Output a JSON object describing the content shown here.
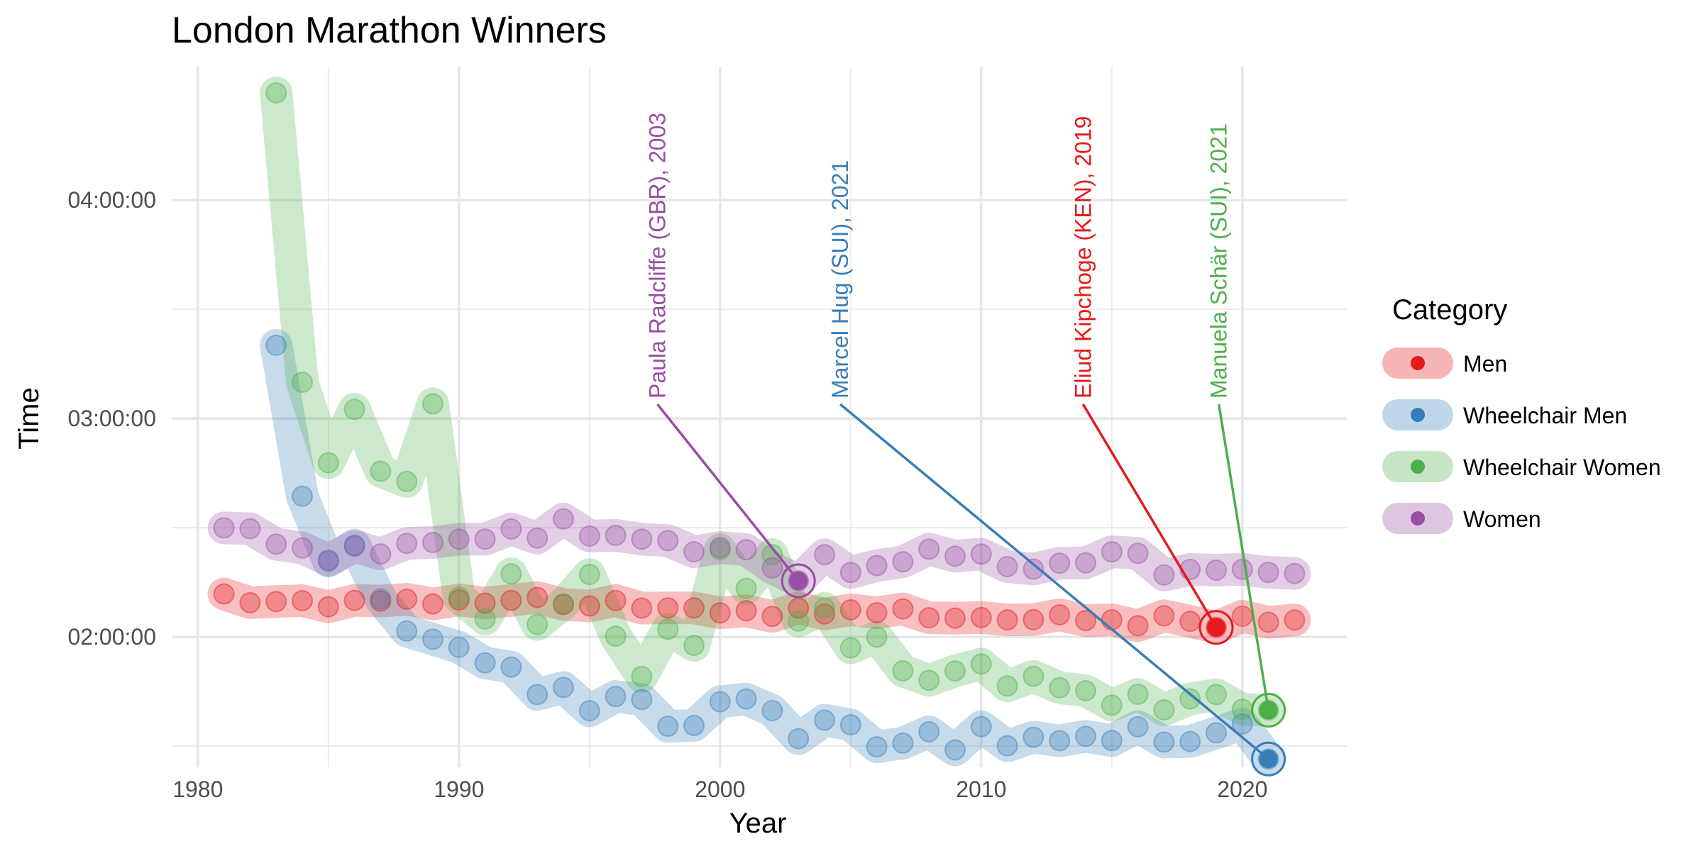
{
  "chart_data": {
    "type": "line",
    "title": "London Marathon Winners",
    "xlabel": "Year",
    "ylabel": "Time",
    "xlim": [
      1979,
      2024
    ],
    "ylim_seconds": [
      5050,
      16600
    ],
    "x_ticks": [
      1980,
      1990,
      2000,
      2010,
      2020
    ],
    "y_ticks": [
      {
        "seconds": 7200,
        "label": "02:00:00"
      },
      {
        "seconds": 10800,
        "label": "03:00:00"
      },
      {
        "seconds": 14400,
        "label": "04:00:00"
      }
    ],
    "grid": true,
    "legend": {
      "title": "Category",
      "position": "right"
    },
    "series": [
      {
        "name": "Men",
        "color": "#E41A1C",
        "points": [
          [
            1981,
            "02:11:48"
          ],
          [
            1982,
            "02:09:24"
          ],
          [
            1983,
            "02:09:43"
          ],
          [
            1984,
            "02:09:57"
          ],
          [
            1985,
            "02:08:16"
          ],
          [
            1986,
            "02:10:02"
          ],
          [
            1987,
            "02:09:50"
          ],
          [
            1988,
            "02:10:20"
          ],
          [
            1989,
            "02:09:03"
          ],
          [
            1990,
            "02:10:10"
          ],
          [
            1991,
            "02:09:17"
          ],
          [
            1992,
            "02:10:02"
          ],
          [
            1993,
            "02:10:50"
          ],
          [
            1994,
            "02:08:53"
          ],
          [
            1995,
            "02:08:30"
          ],
          [
            1996,
            "02:10:00"
          ],
          [
            1997,
            "02:07:55"
          ],
          [
            1998,
            "02:07:57"
          ],
          [
            1999,
            "02:07:57"
          ],
          [
            2000,
            "02:06:36"
          ],
          [
            2001,
            "02:07:11"
          ],
          [
            2002,
            "02:05:38"
          ],
          [
            2003,
            "02:07:56"
          ],
          [
            2004,
            "02:06:18"
          ],
          [
            2005,
            "02:07:26"
          ],
          [
            2006,
            "02:06:39"
          ],
          [
            2007,
            "02:07:41"
          ],
          [
            2008,
            "02:05:15"
          ],
          [
            2009,
            "02:05:10"
          ],
          [
            2010,
            "02:05:19"
          ],
          [
            2011,
            "02:04:40"
          ],
          [
            2012,
            "02:04:44"
          ],
          [
            2013,
            "02:06:04"
          ],
          [
            2014,
            "02:04:29"
          ],
          [
            2015,
            "02:04:42"
          ],
          [
            2016,
            "02:03:05"
          ],
          [
            2017,
            "02:05:48"
          ],
          [
            2018,
            "02:04:17"
          ],
          [
            2019,
            "02:02:37"
          ],
          [
            2020,
            "02:05:41"
          ],
          [
            2021,
            "02:04:01"
          ],
          [
            2022,
            "02:04:39"
          ]
        ]
      },
      {
        "name": "Wheelchair Men",
        "color": "#377EB8",
        "points": [
          [
            1983,
            "03:20:07"
          ],
          [
            1984,
            "02:38:40"
          ],
          [
            1985,
            "02:20:48"
          ],
          [
            1986,
            "02:25:13"
          ],
          [
            1987,
            "02:10:27"
          ],
          [
            1988,
            "02:01:37"
          ],
          [
            1989,
            "01:59:22"
          ],
          [
            1990,
            "01:57:08"
          ],
          [
            1991,
            "01:52:52"
          ],
          [
            1992,
            "01:51:42"
          ],
          [
            1993,
            "01:44:10"
          ],
          [
            1994,
            "01:46:07"
          ],
          [
            1995,
            "01:39:42"
          ],
          [
            1996,
            "01:43:37"
          ],
          [
            1997,
            "01:42:48"
          ],
          [
            1998,
            "01:35:27"
          ],
          [
            1999,
            "01:35:40"
          ],
          [
            2000,
            "01:42:10"
          ],
          [
            2001,
            "01:42:57"
          ],
          [
            2002,
            "01:39:44"
          ],
          [
            2003,
            "01:32:02"
          ],
          [
            2004,
            "01:37:07"
          ],
          [
            2005,
            "01:35:51"
          ],
          [
            2006,
            "01:29:48"
          ],
          [
            2007,
            "01:30:49"
          ],
          [
            2008,
            "01:33:56"
          ],
          [
            2009,
            "01:28:57"
          ],
          [
            2010,
            "01:35:21"
          ],
          [
            2011,
            "01:30:05"
          ],
          [
            2012,
            "01:32:26"
          ],
          [
            2013,
            "01:31:28"
          ],
          [
            2014,
            "01:32:41"
          ],
          [
            2015,
            "01:31:31"
          ],
          [
            2016,
            "01:35:19"
          ],
          [
            2017,
            "01:31:06"
          ],
          [
            2018,
            "01:31:15"
          ],
          [
            2019,
            "01:33:38"
          ],
          [
            2020,
            "01:36:04"
          ],
          [
            2021,
            "01:26:27"
          ]
        ]
      },
      {
        "name": "Wheelchair Women",
        "color": "#4DAF4A",
        "points": [
          [
            1983,
            "04:29:28"
          ],
          [
            1984,
            "03:09:58"
          ],
          [
            1985,
            "02:47:51"
          ],
          [
            1986,
            "03:02:32"
          ],
          [
            1987,
            "02:45:31"
          ],
          [
            1988,
            "02:42:42"
          ],
          [
            1989,
            "03:04:02"
          ],
          [
            1990,
            "02:10:54"
          ],
          [
            1991,
            "02:04:56"
          ],
          [
            1992,
            "02:17:19"
          ],
          [
            1993,
            "02:03:26"
          ],
          [
            1994,
            "02:09:06"
          ],
          [
            1995,
            "02:17:09"
          ],
          [
            1996,
            "02:00:11"
          ],
          [
            1997,
            "01:49:08"
          ],
          [
            1998,
            "02:02:06"
          ],
          [
            1999,
            "01:57:40"
          ],
          [
            2000,
            "02:23:56"
          ],
          [
            2001,
            "02:13:21"
          ],
          [
            2002,
            "02:22:36"
          ],
          [
            2003,
            "02:04:21"
          ],
          [
            2004,
            "02:07:51"
          ],
          [
            2005,
            "01:57:00"
          ],
          [
            2006,
            "01:59:57"
          ],
          [
            2007,
            "01:50:40"
          ],
          [
            2008,
            "01:48:04"
          ],
          [
            2009,
            "01:50:39"
          ],
          [
            2010,
            "01:52:33"
          ],
          [
            2011,
            "01:46:31"
          ],
          [
            2012,
            "01:49:10"
          ],
          [
            2013,
            "01:46:02"
          ],
          [
            2014,
            "01:45:12"
          ],
          [
            2015,
            "01:41:14"
          ],
          [
            2016,
            "01:44:14"
          ],
          [
            2017,
            "01:39:57"
          ],
          [
            2018,
            "01:42:58"
          ],
          [
            2019,
            "01:44:09"
          ],
          [
            2020,
            "01:40:07"
          ],
          [
            2021,
            "01:39:52"
          ]
        ]
      },
      {
        "name": "Women",
        "color": "#984EA3",
        "points": [
          [
            1981,
            "02:29:57"
          ],
          [
            1982,
            "02:29:43"
          ],
          [
            1983,
            "02:25:29"
          ],
          [
            1984,
            "02:24:26"
          ],
          [
            1985,
            "02:21:06"
          ],
          [
            1986,
            "02:24:54"
          ],
          [
            1987,
            "02:22:48"
          ],
          [
            1988,
            "02:25:41"
          ],
          [
            1989,
            "02:25:56"
          ],
          [
            1990,
            "02:26:51"
          ],
          [
            1991,
            "02:26:52"
          ],
          [
            1992,
            "02:29:39"
          ],
          [
            1993,
            "02:27:09"
          ],
          [
            1994,
            "02:32:24"
          ],
          [
            1995,
            "02:27:43"
          ],
          [
            1996,
            "02:27:54"
          ],
          [
            1997,
            "02:26:51"
          ],
          [
            1998,
            "02:26:26"
          ],
          [
            1999,
            "02:23:22"
          ],
          [
            2000,
            "02:24:33"
          ],
          [
            2001,
            "02:23:57"
          ],
          [
            2002,
            "02:18:56"
          ],
          [
            2003,
            "02:15:25"
          ],
          [
            2004,
            "02:22:35"
          ],
          [
            2005,
            "02:17:42"
          ],
          [
            2006,
            "02:19:36"
          ],
          [
            2007,
            "02:20:38"
          ],
          [
            2008,
            "02:24:06"
          ],
          [
            2009,
            "02:22:11"
          ],
          [
            2010,
            "02:22:46"
          ],
          [
            2011,
            "02:19:19"
          ],
          [
            2012,
            "02:18:37"
          ],
          [
            2013,
            "02:20:15"
          ],
          [
            2014,
            "02:20:21"
          ],
          [
            2015,
            "02:23:22"
          ],
          [
            2016,
            "02:22:58"
          ],
          [
            2017,
            "02:17:01"
          ],
          [
            2018,
            "02:18:31"
          ],
          [
            2019,
            "02:18:20"
          ],
          [
            2020,
            "02:18:35"
          ],
          [
            2021,
            "02:17:43"
          ],
          [
            2022,
            "02:17:25"
          ]
        ]
      }
    ],
    "annotations": [
      {
        "label": "Paula Radcliffe (GBR), 2003",
        "series": "Women",
        "year": 2003,
        "time": "02:15:25",
        "text_year": 1997.6
      },
      {
        "label": "Marcel Hug (SUI), 2021",
        "series": "Wheelchair Men",
        "year": 2021,
        "time": "01:26:27",
        "text_year": 2004.6
      },
      {
        "label": "Eliud Kipchoge (KEN), 2019",
        "series": "Men",
        "year": 2019,
        "time": "02:02:37",
        "text_year": 2013.9
      },
      {
        "label": "Manuela Schär (SUI), 2021",
        "series": "Wheelchair Women",
        "year": 2021,
        "time": "01:39:52",
        "text_year": 2019.1
      }
    ]
  }
}
